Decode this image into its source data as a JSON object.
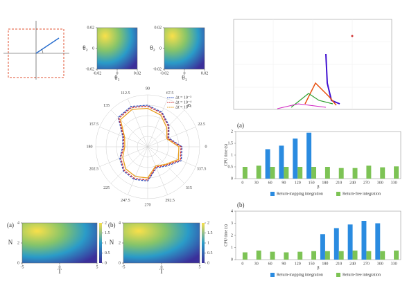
{
  "chart_data": [
    {
      "type": "bar",
      "label": "(a)",
      "xlabel": "β",
      "ylabel": "CPU time (s)",
      "categories": [
        "0",
        "30",
        "60",
        "90",
        "120",
        "150",
        "180",
        "210",
        "240",
        "270",
        "300",
        "330"
      ],
      "series": [
        {
          "name": "Return-mapping integration",
          "color": "#2a8be0",
          "values": [
            null,
            null,
            1.25,
            1.4,
            1.7,
            1.95,
            null,
            null,
            null,
            null,
            null,
            null
          ]
        },
        {
          "name": "Return-free integration",
          "color": "#7dc355",
          "values": [
            0.5,
            0.55,
            0.5,
            0.5,
            0.5,
            0.5,
            0.5,
            0.45,
            0.45,
            0.55,
            0.48,
            0.52
          ]
        }
      ],
      "ylim": [
        0,
        2
      ],
      "yticks": [
        0,
        0.5,
        1,
        1.5,
        2
      ]
    },
    {
      "type": "bar",
      "label": "(b)",
      "xlabel": "β",
      "ylabel": "CPU time (s)",
      "categories": [
        "0",
        "30",
        "60",
        "90",
        "120",
        "150",
        "180",
        "210",
        "240",
        "270",
        "300",
        "330"
      ],
      "series": [
        {
          "name": "Return-mapping integration",
          "color": "#2a8be0",
          "values": [
            null,
            null,
            null,
            null,
            null,
            null,
            2.1,
            2.6,
            2.9,
            3.2,
            3.0,
            null
          ]
        },
        {
          "name": "Return-free integration",
          "color": "#7dc355",
          "values": [
            0.6,
            0.75,
            0.65,
            0.6,
            0.65,
            0.7,
            0.7,
            0.7,
            0.75,
            0.7,
            0.7,
            0.75
          ]
        }
      ],
      "ylim": [
        0,
        4
      ],
      "yticks": [
        0,
        1,
        2,
        3,
        4
      ]
    },
    {
      "type": "polar",
      "thetaticks": [
        0,
        22.5,
        45,
        67.5,
        90,
        112.5,
        135,
        157.5,
        180,
        202.5,
        225,
        247.5,
        270,
        292.5,
        315,
        337.5
      ],
      "rlim": [
        0,
        5
      ],
      "series": [
        {
          "name": "Δt = 10⁻³",
          "color": "#3050c0",
          "values": [
            3.3,
            2.2,
            2.9,
            3.6,
            4.0,
            4.2,
            4.0,
            2.6,
            2.4,
            2.9,
            3.3,
            3.4,
            3.3,
            2.2,
            2.6,
            3.5
          ]
        },
        {
          "name": "Δt = 10⁻⁴",
          "color": "#d03030",
          "values": [
            3.2,
            2.1,
            2.8,
            3.5,
            3.9,
            4.1,
            3.9,
            2.5,
            2.3,
            2.8,
            3.2,
            3.3,
            3.2,
            2.1,
            2.5,
            3.4
          ]
        },
        {
          "name": "Δt = 10⁻⁵",
          "color": "#e8a020",
          "values": [
            3.0,
            2.0,
            2.6,
            3.3,
            3.7,
            3.9,
            3.7,
            2.4,
            2.2,
            2.6,
            3.0,
            3.1,
            3.0,
            2.0,
            2.4,
            3.2
          ]
        }
      ]
    },
    {
      "type": "heatmap",
      "xlabel": "θ₁",
      "ylabel": "θ₂",
      "xlim": [
        -0.02,
        0.02
      ],
      "ylim": [
        -0.02,
        0.02
      ],
      "xticks": [
        -0.02,
        0,
        0.02
      ],
      "yticks": [
        -0.02,
        0,
        0.02
      ]
    },
    {
      "type": "heatmap",
      "xlabel": "θ₁",
      "ylabel": "θ₂",
      "xlim": [
        -0.02,
        0.02
      ],
      "ylim": [
        -0.02,
        0.02
      ],
      "xticks": [
        -0.02,
        0,
        0.02
      ],
      "yticks": [
        -0.02,
        0,
        0.02
      ]
    },
    {
      "type": "heatmap",
      "label": "(a)",
      "xlabel": "T",
      "ylabel": "N",
      "xlim": [
        -5,
        5
      ],
      "ylim": [
        0,
        4
      ],
      "xticks": [
        -5,
        0,
        5
      ],
      "yticks": [
        0,
        2,
        4
      ],
      "clim": [
        0,
        2
      ],
      "cticks": [
        0,
        0.5,
        1,
        1.5,
        2
      ]
    },
    {
      "type": "heatmap",
      "label": "(b)",
      "xlabel": "T",
      "ylabel": "N",
      "xlim": [
        -5,
        5
      ],
      "ylim": [
        0,
        4
      ],
      "xticks": [
        -5,
        0,
        5
      ],
      "yticks": [
        0,
        2,
        4
      ],
      "clim": [
        0,
        2
      ],
      "cticks": [
        0,
        0.5,
        1,
        1.5,
        2
      ]
    }
  ]
}
